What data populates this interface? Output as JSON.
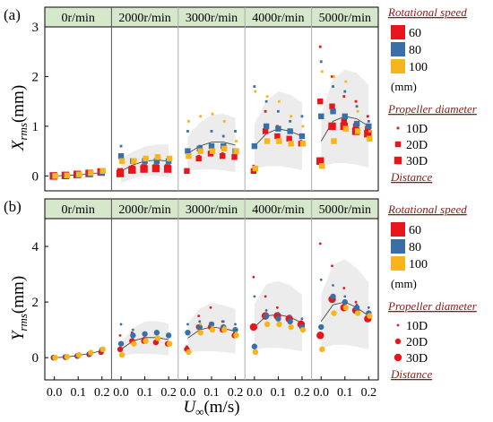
{
  "panels": [
    {
      "label": "(a)",
      "ylabel_main": "X",
      "ylabel_sub": "rms",
      "ylabel_unit": "(mm)",
      "yticks": [
        "0",
        "1",
        "2",
        "3"
      ],
      "ylim": [
        -0.3,
        3
      ],
      "marker": "square"
    },
    {
      "label": "(b)",
      "ylabel_main": "Y",
      "ylabel_sub": "rms",
      "ylabel_unit": "(mm)",
      "yticks": [
        "0",
        "2",
        "4"
      ],
      "ylim": [
        -0.8,
        5
      ],
      "marker": "circle"
    }
  ],
  "speed_headers": [
    "0r/min",
    "2000r/min",
    "3000r/min",
    "4000r/min",
    "5000r/min"
  ],
  "xticks": [
    "0.0",
    "0.1",
    "0.2"
  ],
  "xlabel_main": "U",
  "xlabel_sub": "∞",
  "xlabel_unit": "(m/s)",
  "legend": {
    "rotational_title": "Rotational speed",
    "diameter_entries": [
      {
        "label": "60",
        "color": "#e8151b"
      },
      {
        "label": "80",
        "color": "#3a6fa6"
      },
      {
        "label": "100",
        "color": "#f7b51b"
      }
    ],
    "diameter_unit": "(mm)",
    "propeller_title": "Propeller diameter",
    "distance_entries": [
      "10D",
      "20D",
      "30D"
    ],
    "distance_title": "Distance"
  },
  "colors": {
    "header_fill": "#d6e8cc",
    "d60": "#e8151b",
    "d80": "#3a6fa6",
    "d100": "#f7b51b",
    "band": "#dcdcdc"
  },
  "chart_data": [
    {
      "type": "scatter",
      "title": "(a)",
      "ylabel": "Xrms(mm)",
      "xlabel": "U∞(m/s)",
      "ylim": [
        -0.3,
        3
      ],
      "xlim": [
        -0.03,
        0.22
      ],
      "x": [
        0.0,
        0.05,
        0.1,
        0.15,
        0.2
      ],
      "groups": [
        {
          "speed": "0r/min",
          "series": [
            {
              "d": "60",
              "dist": "10D",
              "y": [
                0.0,
                0.0,
                0.01,
                0.03,
                0.05
              ]
            },
            {
              "d": "60",
              "dist": "20D",
              "y": [
                0.0,
                0.01,
                0.02,
                0.04,
                0.07
              ]
            },
            {
              "d": "60",
              "dist": "30D",
              "y": [
                0.0,
                0.01,
                0.03,
                0.05,
                0.08
              ]
            },
            {
              "d": "80",
              "dist": "20D",
              "y": [
                0.0,
                0.01,
                0.02,
                0.04,
                0.06
              ]
            },
            {
              "d": "100",
              "dist": "20D",
              "y": [
                0.0,
                0.01,
                0.03,
                0.06,
                0.1
              ]
            }
          ],
          "fit": [
            0.0,
            0.01,
            0.02,
            0.04,
            0.07
          ]
        },
        {
          "speed": "2000r/min",
          "series": [
            {
              "d": "60",
              "dist": "10D",
              "y": [
                0.1,
                0.2,
                0.2,
                0.2,
                0.2
              ]
            },
            {
              "d": "60",
              "dist": "20D",
              "y": [
                0.1,
                0.15,
                0.18,
                0.18,
                0.18
              ]
            },
            {
              "d": "60",
              "dist": "30D",
              "y": [
                0.05,
                0.12,
                0.14,
                0.15,
                0.14
              ]
            },
            {
              "d": "80",
              "dist": "10D",
              "y": [
                0.6,
                0.3,
                0.35,
                0.35,
                0.35
              ]
            },
            {
              "d": "80",
              "dist": "20D",
              "y": [
                0.4,
                0.3,
                0.3,
                0.3,
                0.3
              ]
            },
            {
              "d": "100",
              "dist": "20D",
              "y": [
                0.3,
                0.3,
                0.35,
                0.38,
                0.35
              ]
            }
          ],
          "fit": [
            0.1,
            0.22,
            0.3,
            0.32,
            0.3
          ]
        },
        {
          "speed": "3000r/min",
          "series": [
            {
              "d": "60",
              "dist": "10D",
              "y": [
                0.1,
                0.4,
                0.5,
                0.45,
                0.4
              ]
            },
            {
              "d": "60",
              "dist": "20D",
              "y": [
                0.1,
                0.35,
                0.45,
                0.4,
                0.38
              ]
            },
            {
              "d": "80",
              "dist": "10D",
              "y": [
                0.9,
                0.6,
                0.9,
                0.8,
                0.9
              ]
            },
            {
              "d": "80",
              "dist": "20D",
              "y": [
                0.5,
                0.55,
                0.6,
                0.6,
                0.5
              ]
            },
            {
              "d": "100",
              "dist": "10D",
              "y": [
                1.1,
                1.2,
                1.25,
                1.1,
                0.7
              ]
            },
            {
              "d": "100",
              "dist": "20D",
              "y": [
                0.4,
                0.5,
                0.5,
                0.55,
                0.5
              ]
            }
          ],
          "fit": [
            0.45,
            0.6,
            0.68,
            0.68,
            0.62
          ]
        },
        {
          "speed": "4000r/min",
          "series": [
            {
              "d": "60",
              "dist": "10D",
              "y": [
                0.2,
                1.3,
                1.0,
                0.9,
                0.7
              ]
            },
            {
              "d": "60",
              "dist": "20D",
              "y": [
                0.1,
                0.9,
                0.8,
                0.75,
                0.65
              ]
            },
            {
              "d": "80",
              "dist": "10D",
              "y": [
                1.8,
                1.5,
                1.3,
                1.1,
                1.2
              ]
            },
            {
              "d": "80",
              "dist": "20D",
              "y": [
                0.6,
                1.0,
                0.95,
                0.9,
                0.8
              ]
            },
            {
              "d": "100",
              "dist": "10D",
              "y": [
                1.7,
                1.6,
                1.5,
                1.2,
                1.0
              ]
            },
            {
              "d": "100",
              "dist": "20D",
              "y": [
                0.15,
                0.7,
                0.7,
                0.65,
                0.65
              ]
            }
          ],
          "fit": [
            0.6,
            0.85,
            0.95,
            0.9,
            0.8
          ]
        },
        {
          "speed": "5000r/min",
          "series": [
            {
              "d": "60",
              "dist": "10D",
              "y": [
                2.6,
                2.0,
                1.6,
                1.5,
                1.2
              ]
            },
            {
              "d": "60",
              "dist": "20D",
              "y": [
                1.5,
                1.4,
                1.1,
                1.0,
                0.95
              ]
            },
            {
              "d": "60",
              "dist": "30D",
              "y": [
                0.3,
                1.0,
                1.0,
                0.9,
                0.85
              ]
            },
            {
              "d": "80",
              "dist": "10D",
              "y": [
                2.3,
                1.8,
                1.7,
                1.4,
                1.1
              ]
            },
            {
              "d": "80",
              "dist": "20D",
              "y": [
                1.2,
                1.3,
                1.2,
                1.05,
                1.0
              ]
            },
            {
              "d": "100",
              "dist": "10D",
              "y": [
                2.1,
                2.0,
                1.9,
                1.3,
                0.9
              ]
            },
            {
              "d": "100",
              "dist": "20D",
              "y": [
                0.2,
                0.7,
                0.95,
                0.9,
                0.75
              ]
            }
          ],
          "fit": [
            0.7,
            1.1,
            1.2,
            1.15,
            1.0
          ]
        }
      ]
    },
    {
      "type": "scatter",
      "title": "(b)",
      "ylabel": "Yrms(mm)",
      "xlabel": "U∞(m/s)",
      "ylim": [
        -0.8,
        5
      ],
      "xlim": [
        -0.03,
        0.22
      ],
      "x": [
        0.0,
        0.05,
        0.1,
        0.15,
        0.2
      ],
      "groups": [
        {
          "speed": "0r/min",
          "series": [
            {
              "d": "60",
              "dist": "20D",
              "y": [
                0.0,
                0.02,
                0.06,
                0.12,
                0.2
              ]
            },
            {
              "d": "80",
              "dist": "20D",
              "y": [
                0.0,
                0.02,
                0.08,
                0.15,
                0.28
              ]
            },
            {
              "d": "100",
              "dist": "20D",
              "y": [
                0.0,
                0.03,
                0.1,
                0.18,
                0.3
              ]
            }
          ],
          "fit": [
            0.0,
            0.02,
            0.08,
            0.15,
            0.25
          ]
        },
        {
          "speed": "2000r/min",
          "series": [
            {
              "d": "60",
              "dist": "10D",
              "y": [
                0.8,
                0.9,
                0.7,
                0.6,
                0.5
              ]
            },
            {
              "d": "60",
              "dist": "20D",
              "y": [
                0.3,
                0.6,
                0.6,
                0.55,
                0.5
              ]
            },
            {
              "d": "80",
              "dist": "10D",
              "y": [
                1.2,
                1.0,
                0.9,
                0.9,
                0.8
              ]
            },
            {
              "d": "80",
              "dist": "20D",
              "y": [
                0.5,
                0.8,
                0.85,
                0.9,
                0.8
              ]
            },
            {
              "d": "100",
              "dist": "20D",
              "y": [
                0.1,
                0.5,
                0.6,
                0.7,
                0.5
              ]
            }
          ],
          "fit": [
            0.3,
            0.6,
            0.72,
            0.72,
            0.65
          ]
        },
        {
          "speed": "3000r/min",
          "series": [
            {
              "d": "60",
              "dist": "10D",
              "y": [
                0.4,
                1.5,
                1.8,
                1.3,
                0.9
              ]
            },
            {
              "d": "60",
              "dist": "20D",
              "y": [
                0.3,
                1.1,
                1.1,
                1.0,
                0.8
              ]
            },
            {
              "d": "80",
              "dist": "10D",
              "y": [
                1.2,
                1.3,
                1.2,
                1.3,
                1.2
              ]
            },
            {
              "d": "80",
              "dist": "20D",
              "y": [
                0.9,
                1.1,
                1.2,
                1.1,
                1.0
              ]
            },
            {
              "d": "100",
              "dist": "10D",
              "y": [
                0.2,
                1.2,
                1.1,
                1.1,
                0.9
              ]
            },
            {
              "d": "100",
              "dist": "20D",
              "y": [
                0.2,
                0.9,
                1.0,
                1.0,
                0.8
              ]
            }
          ],
          "fit": [
            0.7,
            1.0,
            1.1,
            1.05,
            0.95
          ]
        },
        {
          "speed": "4000r/min",
          "series": [
            {
              "d": "60",
              "dist": "10D",
              "y": [
                2.9,
                2.2,
                1.8,
                1.5,
                1.3
              ]
            },
            {
              "d": "60",
              "dist": "30D",
              "y": [
                1.1,
                1.5,
                1.5,
                1.4,
                1.2
              ]
            },
            {
              "d": "80",
              "dist": "10D",
              "y": [
                2.2,
                1.7,
                1.6,
                1.5,
                1.4
              ]
            },
            {
              "d": "80",
              "dist": "20D",
              "y": [
                0.4,
                1.5,
                1.4,
                1.3,
                1.1
              ]
            },
            {
              "d": "100",
              "dist": "20D",
              "y": [
                0.2,
                1.2,
                1.2,
                1.1,
                1.0
              ]
            }
          ],
          "fit": [
            1.1,
            1.5,
            1.55,
            1.45,
            1.25
          ]
        },
        {
          "speed": "5000r/min",
          "series": [
            {
              "d": "60",
              "dist": "10D",
              "y": [
                4.1,
                3.3,
                2.5,
                2.0,
                1.6
              ]
            },
            {
              "d": "60",
              "dist": "30D",
              "y": [
                0.8,
                2.1,
                1.8,
                1.7,
                1.4
              ]
            },
            {
              "d": "80",
              "dist": "10D",
              "y": [
                2.8,
                2.6,
                2.2,
                1.9,
                1.8
              ]
            },
            {
              "d": "80",
              "dist": "20D",
              "y": [
                1.1,
                2.2,
                2.0,
                1.8,
                1.6
              ]
            },
            {
              "d": "100",
              "dist": "20D",
              "y": [
                0.3,
                1.6,
                1.8,
                1.6,
                1.5
              ]
            }
          ],
          "fit": [
            1.3,
            1.9,
            2.0,
            1.8,
            1.5
          ]
        }
      ]
    }
  ]
}
